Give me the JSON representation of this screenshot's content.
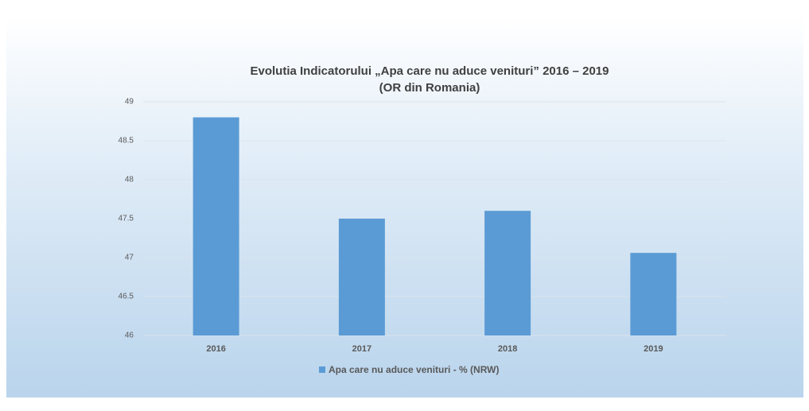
{
  "chart_data": {
    "type": "bar",
    "title": "Evolutia Indicatorului  „Apa care nu aduce venituri” 2016 – 2019",
    "subtitle": "(OR din Romania)",
    "categories": [
      "2016",
      "2017",
      "2018",
      "2019"
    ],
    "series": [
      {
        "name": "Apa care nu aduce venituri -  % (NRW)",
        "color": "#5b9bd5",
        "values": [
          48.8,
          47.5,
          47.6,
          47.06
        ]
      }
    ],
    "ylim": [
      46,
      49
    ],
    "yticks": [
      46,
      46.5,
      47,
      47.5,
      48,
      48.5,
      49
    ],
    "grid": true,
    "legend": "bottom"
  }
}
